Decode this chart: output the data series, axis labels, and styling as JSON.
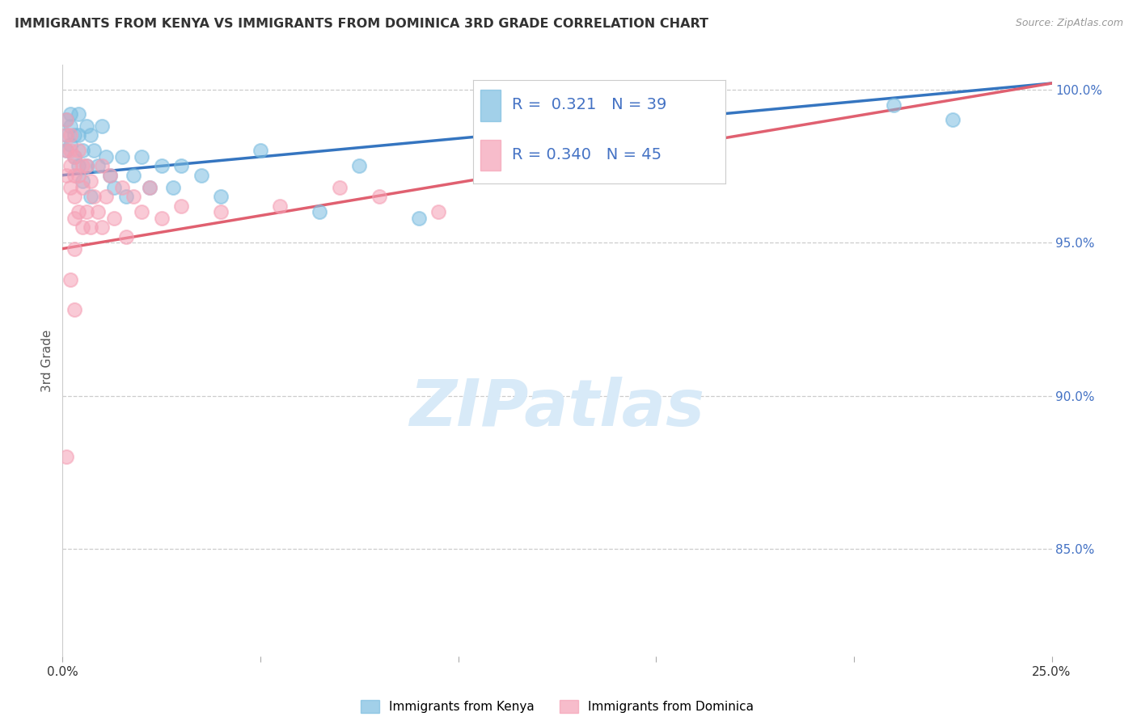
{
  "title": "IMMIGRANTS FROM KENYA VS IMMIGRANTS FROM DOMINICA 3RD GRADE CORRELATION CHART",
  "source": "Source: ZipAtlas.com",
  "ylabel": "3rd Grade",
  "xlim": [
    0.0,
    0.25
  ],
  "ylim": [
    0.815,
    1.008
  ],
  "x_ticks": [
    0.0,
    0.05,
    0.1,
    0.15,
    0.2,
    0.25
  ],
  "y_ticks_right": [
    0.85,
    0.9,
    0.95,
    1.0
  ],
  "y_tick_labels_right": [
    "85.0%",
    "90.0%",
    "95.0%",
    "100.0%"
  ],
  "kenya_R": 0.321,
  "kenya_N": 39,
  "dominica_R": 0.34,
  "dominica_N": 45,
  "kenya_color": "#7bbde0",
  "dominica_color": "#f5a0b5",
  "kenya_line_color": "#3575c0",
  "dominica_line_color": "#e06070",
  "background_color": "#ffffff",
  "kenya_x": [
    0.001,
    0.001,
    0.001,
    0.002,
    0.002,
    0.002,
    0.003,
    0.003,
    0.004,
    0.004,
    0.004,
    0.005,
    0.005,
    0.006,
    0.006,
    0.007,
    0.007,
    0.008,
    0.009,
    0.01,
    0.011,
    0.012,
    0.013,
    0.015,
    0.016,
    0.018,
    0.02,
    0.022,
    0.025,
    0.028,
    0.03,
    0.035,
    0.04,
    0.05,
    0.065,
    0.075,
    0.09,
    0.21,
    0.225
  ],
  "kenya_y": [
    0.99,
    0.985,
    0.98,
    0.992,
    0.988,
    0.982,
    0.985,
    0.978,
    0.992,
    0.985,
    0.975,
    0.98,
    0.97,
    0.988,
    0.975,
    0.985,
    0.965,
    0.98,
    0.975,
    0.988,
    0.978,
    0.972,
    0.968,
    0.978,
    0.965,
    0.972,
    0.978,
    0.968,
    0.975,
    0.968,
    0.975,
    0.972,
    0.965,
    0.98,
    0.96,
    0.975,
    0.958,
    0.995,
    0.99
  ],
  "dominica_x": [
    0.001,
    0.001,
    0.001,
    0.001,
    0.002,
    0.002,
    0.002,
    0.002,
    0.003,
    0.003,
    0.003,
    0.003,
    0.004,
    0.004,
    0.004,
    0.005,
    0.005,
    0.005,
    0.006,
    0.006,
    0.007,
    0.007,
    0.008,
    0.009,
    0.01,
    0.01,
    0.011,
    0.012,
    0.013,
    0.015,
    0.016,
    0.018,
    0.02,
    0.022,
    0.025,
    0.03,
    0.04,
    0.055,
    0.07,
    0.08,
    0.095,
    0.003,
    0.002,
    0.003,
    0.001
  ],
  "dominica_y": [
    0.99,
    0.985,
    0.98,
    0.972,
    0.985,
    0.98,
    0.975,
    0.968,
    0.978,
    0.972,
    0.965,
    0.958,
    0.98,
    0.972,
    0.96,
    0.975,
    0.968,
    0.955,
    0.975,
    0.96,
    0.97,
    0.955,
    0.965,
    0.96,
    0.975,
    0.955,
    0.965,
    0.972,
    0.958,
    0.968,
    0.952,
    0.965,
    0.96,
    0.968,
    0.958,
    0.962,
    0.96,
    0.962,
    0.968,
    0.965,
    0.96,
    0.948,
    0.938,
    0.928,
    0.88
  ],
  "kenya_trend_x0": 0.0,
  "kenya_trend_y0": 0.972,
  "kenya_trend_x1": 0.25,
  "kenya_trend_y1": 1.002,
  "dominica_trend_x0": 0.0,
  "dominica_trend_y0": 0.948,
  "dominica_trend_x1": 0.25,
  "dominica_trend_y1": 1.002,
  "watermark_text": "ZIPatlas",
  "watermark_color": "#d8eaf8"
}
